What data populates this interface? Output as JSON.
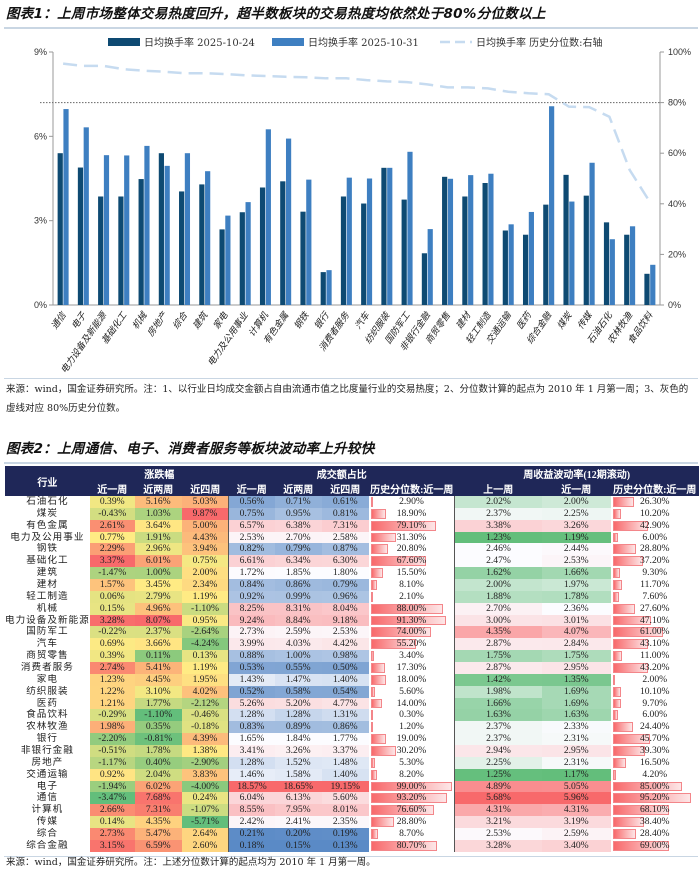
{
  "figure1": {
    "title": "图表1：上周市场整体交易热度回升，超半数板块的交易热度均依然处于80%分位数以上",
    "note": "来源：wind，国金证券研究所。注：1、以行业日均成交金额占自由流通市值之比度量行业的交易热度；2、分位数计算的起点为 2010 年 1 月第一周；3、灰色的虚线对应 80%历史分位数。"
  },
  "chart_data": {
    "type": "bar",
    "title": "",
    "categories": [
      "通信",
      "电子",
      "电力设备及新能源",
      "基础化工",
      "机械",
      "房地产",
      "综合",
      "建筑",
      "家电",
      "电力及公用事业",
      "计算机",
      "有色金属",
      "钢铁",
      "银行",
      "消费者服务",
      "汽车",
      "纺织服装",
      "国防军工",
      "非银行金融",
      "商贸零售",
      "建材",
      "轻工制造",
      "交通运输",
      "医药",
      "综合金融",
      "煤炭",
      "传媒",
      "石油石化",
      "农林牧渔",
      "食品饮料"
    ],
    "series": [
      {
        "name": "日均换手率 2025-10-24",
        "type": "bar",
        "axis": "left",
        "color": "#0e4a72",
        "values": [
          5.4,
          4.89,
          3.86,
          3.86,
          4.48,
          5.4,
          4.04,
          4.29,
          2.69,
          3.3,
          4.18,
          4.4,
          3.32,
          1.17,
          3.86,
          3.61,
          4.88,
          3.75,
          1.84,
          4.56,
          3.86,
          4.34,
          2.65,
          2.5,
          3.57,
          4.63,
          3.89,
          2.94,
          2.5,
          1.11
        ]
      },
      {
        "name": "日均换手率 2025-10-31",
        "type": "bar",
        "axis": "left",
        "color": "#3e7fc1",
        "values": [
          6.97,
          6.32,
          5.33,
          5.32,
          5.66,
          4.95,
          5.4,
          4.76,
          3.18,
          3.66,
          6.25,
          5.92,
          4.46,
          1.24,
          4.53,
          4.5,
          4.88,
          5.45,
          2.7,
          4.49,
          4.62,
          4.67,
          2.87,
          3.31,
          7.07,
          3.68,
          5.06,
          2.34,
          2.8,
          1.43
        ]
      },
      {
        "name": "日均换手率 历史分位数:右轴",
        "type": "line",
        "axis": "right",
        "color": "#c6dbf0",
        "dash": true,
        "values": [
          95.4,
          94.5,
          94.5,
          93.2,
          92.6,
          92.2,
          91.6,
          91.6,
          91.3,
          90.8,
          90.5,
          90.2,
          90.0,
          89.6,
          89.6,
          88.9,
          88.4,
          88.1,
          87.2,
          86.0,
          86.0,
          85.6,
          84.3,
          83.7,
          83.3,
          78.4,
          78.2,
          74.4,
          53.4,
          40.7
        ]
      }
    ],
    "left_axis": {
      "range": [
        0,
        9
      ],
      "ticks": [
        "0%",
        "3%",
        "6%",
        "9%"
      ]
    },
    "right_axis": {
      "range": [
        0,
        100
      ],
      "ticks": [
        "0%",
        "20%",
        "40%",
        "60%",
        "80%",
        "100%"
      ]
    },
    "reference_line": {
      "axis": "right",
      "value": 80,
      "style": "dotted",
      "color": "#666666"
    },
    "legend_placement": "top",
    "grid": false
  },
  "figure2": {
    "title": "图表2：上周通信、电子、消费者服务等板块波动率上升较快",
    "note": "来源：wind，国金证券研究所。注：上述分位数计算的起点均为 2010 年 1 月第一周。",
    "headers": {
      "industry": "行业",
      "group_change": "涨跌幅",
      "group_turnover": "成交额占比",
      "group_vol": "周收益波动率(12期滚动)",
      "change_cols": [
        "近一周",
        "近两周",
        "近四周"
      ],
      "turnover_cols": [
        "近一周",
        "近两周",
        "近四周",
        "历史分位数:近一周"
      ],
      "vol_cols": [
        "上一周",
        "近一周",
        "历史分位数:近一周"
      ]
    },
    "colors": {
      "header_bg": "#1f2758",
      "change_scale": [
        "#63be7b",
        "#ffeb84",
        "#f8696b"
      ],
      "turnover_scale": [
        "#5a8ac6",
        "#fcfcff",
        "#f8696b"
      ],
      "vol_scale": [
        "#63be7b",
        "#fcfcff",
        "#f8696b"
      ],
      "percentile_bar": "#f8696b"
    },
    "rows": [
      [
        "石油石化",
        "0.39%",
        "5.16%",
        "5.03%",
        "0.56%",
        "0.71%",
        "0.61%",
        "2.90%",
        "2.02%",
        "2.00%",
        "26.30%"
      ],
      [
        "煤炭",
        "-0.43%",
        "1.03%",
        "9.87%",
        "0.75%",
        "0.95%",
        "0.81%",
        "18.90%",
        "2.37%",
        "2.25%",
        "10.20%"
      ],
      [
        "有色金属",
        "2.61%",
        "3.64%",
        "5.00%",
        "6.57%",
        "6.38%",
        "7.31%",
        "79.10%",
        "3.38%",
        "3.26%",
        "42.90%"
      ],
      [
        "电力及公用事业",
        "0.77%",
        "1.91%",
        "4.43%",
        "2.53%",
        "2.70%",
        "2.58%",
        "31.30%",
        "1.23%",
        "1.19%",
        "6.00%"
      ],
      [
        "钢铁",
        "2.29%",
        "2.96%",
        "3.94%",
        "0.82%",
        "0.79%",
        "0.87%",
        "20.80%",
        "2.46%",
        "2.44%",
        "28.80%"
      ],
      [
        "基础化工",
        "3.37%",
        "6.01%",
        "0.75%",
        "6.61%",
        "6.34%",
        "6.30%",
        "67.60%",
        "2.47%",
        "2.53%",
        "37.20%"
      ],
      [
        "建筑",
        "-1.47%",
        "1.00%",
        "2.00%",
        "1.72%",
        "1.85%",
        "1.80%",
        "15.50%",
        "1.62%",
        "1.66%",
        "9.30%"
      ],
      [
        "建材",
        "1.57%",
        "3.45%",
        "2.34%",
        "0.84%",
        "0.86%",
        "0.79%",
        "8.10%",
        "2.00%",
        "1.97%",
        "11.70%"
      ],
      [
        "轻工制造",
        "0.06%",
        "2.79%",
        "1.19%",
        "0.92%",
        "0.99%",
        "0.96%",
        "2.10%",
        "1.88%",
        "1.78%",
        "7.60%"
      ],
      [
        "机械",
        "0.15%",
        "4.96%",
        "-1.10%",
        "8.25%",
        "8.31%",
        "8.04%",
        "88.00%",
        "2.70%",
        "2.36%",
        "27.60%"
      ],
      [
        "电力设备及新能源",
        "3.28%",
        "8.07%",
        "0.95%",
        "9.24%",
        "8.84%",
        "9.18%",
        "91.30%",
        "3.00%",
        "3.01%",
        "47.10%"
      ],
      [
        "国防军工",
        "-0.22%",
        "2.37%",
        "-2.64%",
        "2.73%",
        "2.59%",
        "2.53%",
        "74.00%",
        "4.35%",
        "4.07%",
        "61.00%"
      ],
      [
        "汽车",
        "0.69%",
        "3.66%",
        "-4.24%",
        "3.99%",
        "4.03%",
        "4.42%",
        "55.20%",
        "2.87%",
        "2.84%",
        "43.10%"
      ],
      [
        "商贸零售",
        "0.39%",
        "0.11%",
        "0.13%",
        "0.88%",
        "1.00%",
        "0.98%",
        "3.40%",
        "1.75%",
        "1.75%",
        "11.00%"
      ],
      [
        "消费者服务",
        "2.74%",
        "5.41%",
        "1.19%",
        "0.53%",
        "0.55%",
        "0.50%",
        "17.30%",
        "2.87%",
        "2.95%",
        "43.20%"
      ],
      [
        "家电",
        "1.23%",
        "4.45%",
        "1.95%",
        "1.43%",
        "1.47%",
        "1.40%",
        "18.00%",
        "1.42%",
        "1.35%",
        "2.00%"
      ],
      [
        "纺织服装",
        "1.22%",
        "3.10%",
        "4.02%",
        "0.52%",
        "0.58%",
        "0.54%",
        "5.60%",
        "1.98%",
        "1.69%",
        "10.10%"
      ],
      [
        "医药",
        "1.21%",
        "1.77%",
        "-2.12%",
        "5.26%",
        "5.20%",
        "4.77%",
        "14.00%",
        "1.66%",
        "1.69%",
        "9.70%"
      ],
      [
        "食品饮料",
        "-0.29%",
        "-1.10%",
        "-0.46%",
        "1.28%",
        "1.28%",
        "1.31%",
        "0.30%",
        "1.63%",
        "1.63%",
        "6.00%"
      ],
      [
        "农林牧渔",
        "1.98%",
        "0.35%",
        "-0.18%",
        "0.83%",
        "0.89%",
        "0.86%",
        "1.20%",
        "2.37%",
        "2.33%",
        "24.40%"
      ],
      [
        "银行",
        "-2.20%",
        "-0.81%",
        "4.39%",
        "1.65%",
        "1.84%",
        "1.77%",
        "19.00%",
        "2.37%",
        "2.31%",
        "45.70%"
      ],
      [
        "非银行金融",
        "-0.51%",
        "1.78%",
        "1.38%",
        "3.41%",
        "3.26%",
        "3.37%",
        "30.20%",
        "2.94%",
        "2.95%",
        "39.30%"
      ],
      [
        "房地产",
        "-1.17%",
        "0.40%",
        "-2.90%",
        "1.28%",
        "1.52%",
        "1.48%",
        "5.30%",
        "2.25%",
        "2.31%",
        "16.50%"
      ],
      [
        "交通运输",
        "0.92%",
        "2.04%",
        "3.83%",
        "1.46%",
        "1.58%",
        "1.40%",
        "8.20%",
        "1.25%",
        "1.17%",
        "4.20%"
      ],
      [
        "电子",
        "-1.94%",
        "6.02%",
        "-4.00%",
        "18.57%",
        "18.65%",
        "19.15%",
        "99.00%",
        "4.89%",
        "5.05%",
        "85.00%"
      ],
      [
        "通信",
        "-3.47%",
        "7.68%",
        "0.24%",
        "6.04%",
        "6.13%",
        "5.60%",
        "93.20%",
        "5.68%",
        "5.96%",
        "95.20%"
      ],
      [
        "计算机",
        "2.66%",
        "7.31%",
        "-1.07%",
        "8.55%",
        "7.95%",
        "8.01%",
        "76.60%",
        "4.31%",
        "4.31%",
        "68.10%"
      ],
      [
        "传媒",
        "0.14%",
        "4.35%",
        "-5.71%",
        "2.42%",
        "2.41%",
        "2.35%",
        "28.80%",
        "3.21%",
        "3.19%",
        "38.40%"
      ],
      [
        "综合",
        "2.73%",
        "5.47%",
        "2.64%",
        "0.21%",
        "0.20%",
        "0.19%",
        "8.70%",
        "2.53%",
        "2.59%",
        "28.40%"
      ],
      [
        "综合金融",
        "3.15%",
        "6.59%",
        "2.60%",
        "0.18%",
        "0.15%",
        "0.13%",
        "80.70%",
        "3.28%",
        "3.40%",
        "69.00%"
      ]
    ]
  }
}
